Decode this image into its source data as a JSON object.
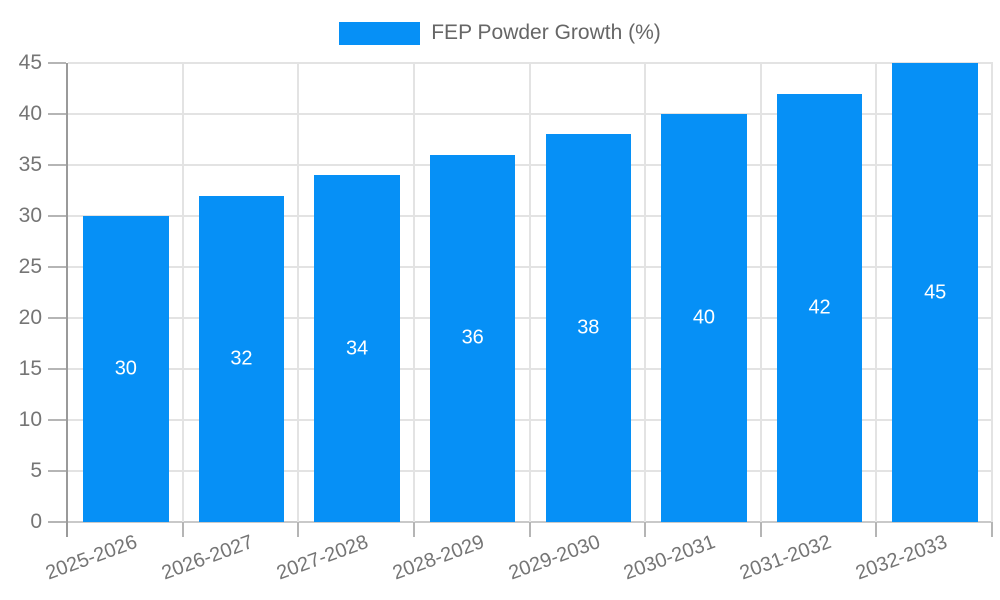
{
  "chart_data": {
    "type": "bar",
    "title": "",
    "series_name": "FEP Powder Growth (%)",
    "categories": [
      "2025-2026",
      "2026-2027",
      "2027-2028",
      "2028-2029",
      "2029-2030",
      "2030-2031",
      "2031-2032",
      "2032-2033"
    ],
    "values": [
      30,
      32,
      34,
      36,
      38,
      40,
      42,
      45
    ],
    "value_labels": [
      "30",
      "32",
      "34",
      "36",
      "38",
      "40",
      "42",
      "45"
    ],
    "xlabel": "",
    "ylabel": "",
    "ylim": [
      0,
      45
    ],
    "ytick_step": 5,
    "ytick_labels": [
      "0",
      "5",
      "10",
      "15",
      "20",
      "25",
      "30",
      "35",
      "40",
      "45"
    ],
    "xtick_rotation_deg": -20,
    "grid": true,
    "legend_position": "top-center",
    "value_label_position": "inside-center",
    "colors": {
      "bar": "#0690f6",
      "value_label": "#ffffff",
      "grid": "#e3e3e3",
      "zero_line": "#c9c9c9",
      "axis": "#9a9a9a",
      "tick": "#b5b5b5",
      "tick_label": "#757575",
      "legend_text": "#666666",
      "background": "#ffffff"
    }
  }
}
